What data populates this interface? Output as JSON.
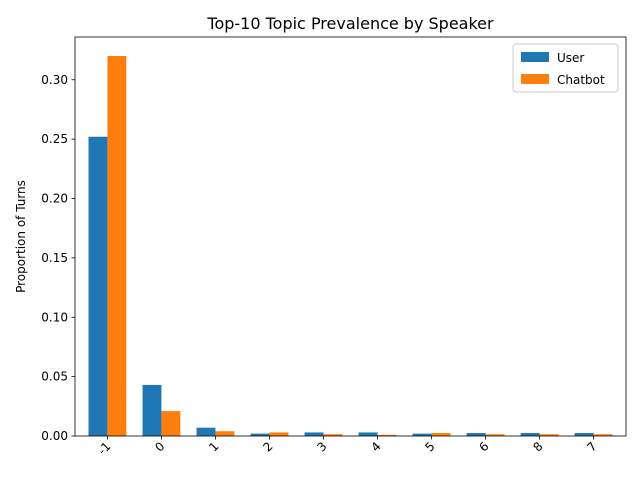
{
  "chart_data": {
    "type": "bar",
    "title": "Top-10 Topic Prevalence by Speaker",
    "xlabel": "",
    "ylabel": "Proportion of Turns",
    "categories": [
      "-1",
      "0",
      "1",
      "2",
      "3",
      "4",
      "5",
      "6",
      "8",
      "7"
    ],
    "series": [
      {
        "name": "User",
        "color": "#1f77b4",
        "values": [
          0.252,
          0.043,
          0.007,
          0.002,
          0.003,
          0.003,
          0.002,
          0.0025,
          0.0025,
          0.0025
        ]
      },
      {
        "name": "Chatbot",
        "color": "#ff7f0e",
        "values": [
          0.32,
          0.021,
          0.004,
          0.003,
          0.0015,
          0.001,
          0.0025,
          0.0015,
          0.0015,
          0.0015
        ]
      }
    ],
    "ylim": [
      0,
      0.336
    ],
    "yticks": [
      "0.00",
      "0.05",
      "0.10",
      "0.15",
      "0.20",
      "0.25",
      "0.30"
    ],
    "ytick_values": [
      0,
      0.05,
      0.1,
      0.15,
      0.2,
      0.25,
      0.3
    ],
    "legend": "top-right",
    "grid": false
  }
}
